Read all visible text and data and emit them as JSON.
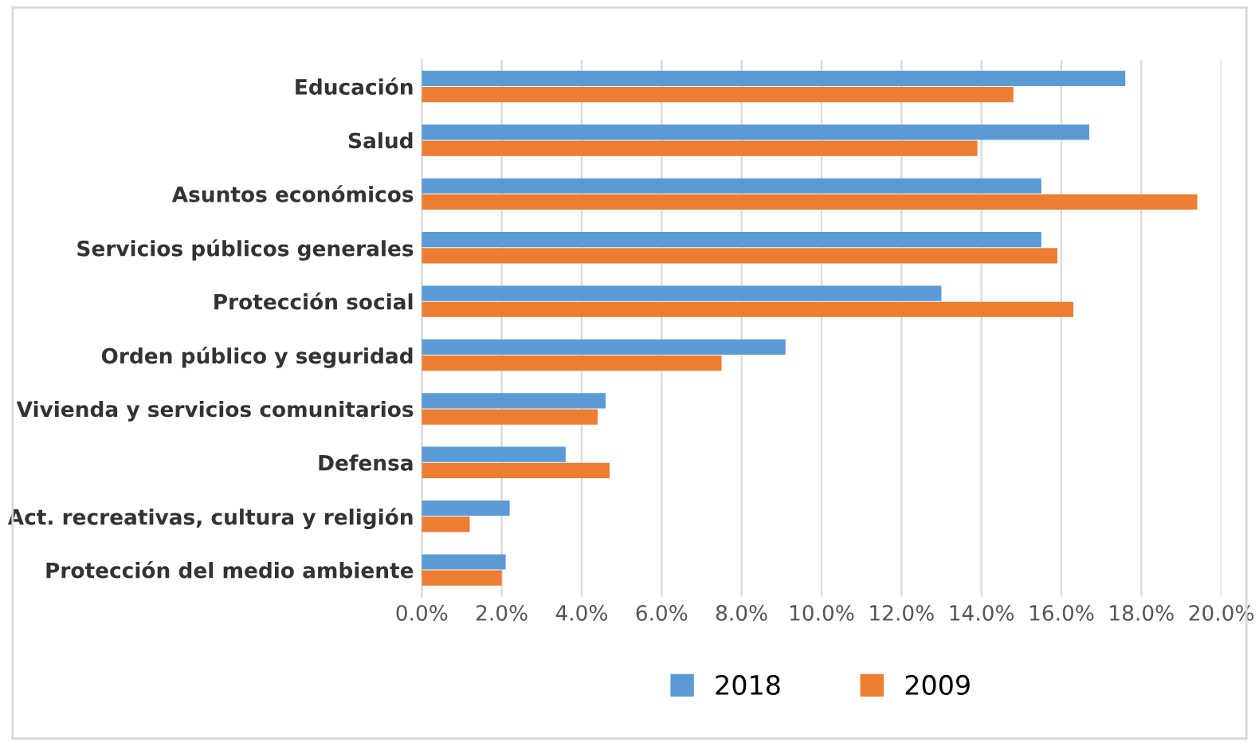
{
  "chart_data": {
    "type": "bar",
    "orientation": "horizontal",
    "categories": [
      "Educación",
      "Salud",
      "Asuntos económicos",
      "Servicios públicos generales",
      "Protección social",
      "Orden público y seguridad",
      "Vivienda y servicios comunitarios",
      "Defensa",
      "Act. recreativas, cultura y religión",
      "Protección del medio ambiente"
    ],
    "series": [
      {
        "name": "2018",
        "color": "#5b9bd5",
        "values": [
          17.6,
          16.7,
          15.5,
          15.5,
          13.0,
          9.1,
          4.6,
          3.6,
          2.2,
          2.1
        ]
      },
      {
        "name": "2009",
        "color": "#ed7d31",
        "values": [
          14.8,
          13.9,
          19.4,
          15.9,
          16.3,
          7.5,
          4.4,
          4.7,
          1.2,
          2.0
        ]
      }
    ],
    "xlim": [
      0,
      20
    ],
    "xticks": [
      {
        "value": 0,
        "label": "0.0%"
      },
      {
        "value": 2,
        "label": "2.0%"
      },
      {
        "value": 4,
        "label": "4.0%"
      },
      {
        "value": 6,
        "label": "6.0%"
      },
      {
        "value": 8,
        "label": "8.0%"
      },
      {
        "value": 10,
        "label": "10.0%"
      },
      {
        "value": 12,
        "label": "12.0%"
      },
      {
        "value": 14,
        "label": "14.0%"
      },
      {
        "value": 16,
        "label": "16.0%"
      },
      {
        "value": 18,
        "label": "18.0%"
      },
      {
        "value": 20,
        "label": "20.0%"
      }
    ],
    "grid": "x",
    "legend": "bottom"
  }
}
